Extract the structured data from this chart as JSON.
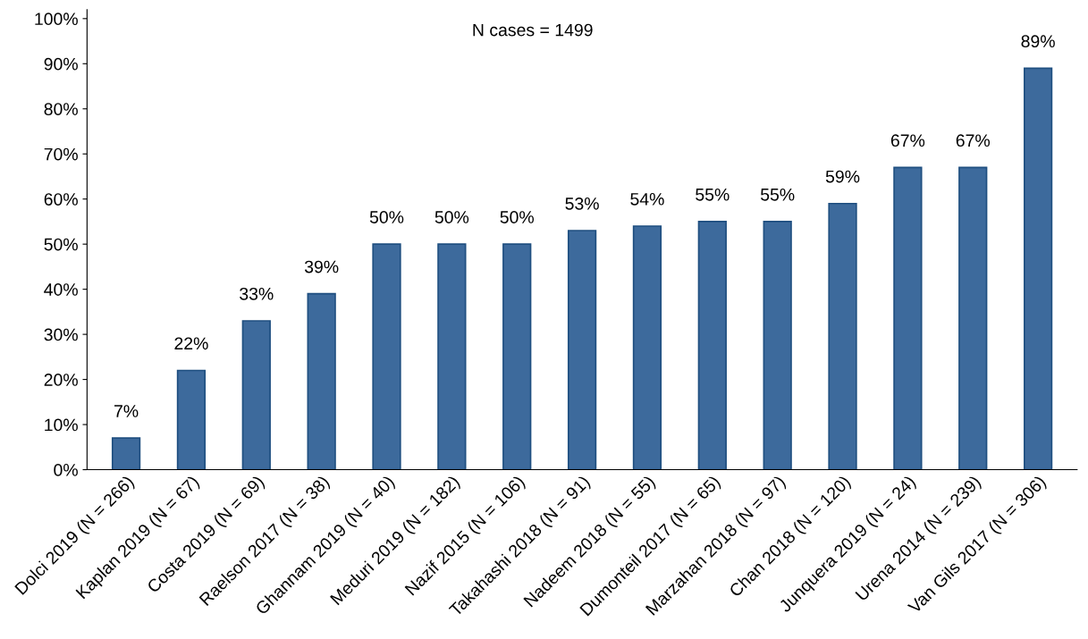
{
  "chart_data": {
    "type": "bar",
    "categories": [
      "Dolci 2019 (N = 266)",
      "Kaplan 2019 (N = 67)",
      "Costa 2019 (N = 69)",
      "Raelson 2017 (N = 38)",
      "Ghannam 2019 (N = 40)",
      "Meduri 2019 (N = 182)",
      "Nazif 2015 (N = 106)",
      "Takahashi 2018 (N = 91)",
      "Nadeem 2018 (N = 55)",
      "Dumonteil 2017 (N = 65)",
      "Marzahan 2018 (N = 97)",
      "Chan 2018 (N = 120)",
      "Junquera 2019 (N = 24)",
      "Urena 2014 (N = 239)",
      "Van Gils 2017 (N = 306)"
    ],
    "values": [
      7,
      22,
      33,
      39,
      50,
      50,
      50,
      53,
      54,
      55,
      55,
      59,
      67,
      67,
      89
    ],
    "value_labels": [
      "7%",
      "22%",
      "33%",
      "39%",
      "50%",
      "50%",
      "50%",
      "53%",
      "54%",
      "55%",
      "55%",
      "59%",
      "67%",
      "67%",
      "89%"
    ],
    "color": "#3d6a9c",
    "ylim": [
      0,
      102
    ],
    "yticks": [
      {
        "value": 0,
        "label": "0%"
      },
      {
        "value": 10,
        "label": "10%"
      },
      {
        "value": 20,
        "label": "20%"
      },
      {
        "value": 30,
        "label": "30%"
      },
      {
        "value": 40,
        "label": "40%"
      },
      {
        "value": 50,
        "label": "50%"
      },
      {
        "value": 60,
        "label": "60%"
      },
      {
        "value": 70,
        "label": "70%"
      },
      {
        "value": 80,
        "label": "80%"
      },
      {
        "value": 90,
        "label": "90%"
      },
      {
        "value": 100,
        "label": "100%"
      }
    ],
    "annotations": [
      "N cases = 1499"
    ],
    "grid": false
  }
}
